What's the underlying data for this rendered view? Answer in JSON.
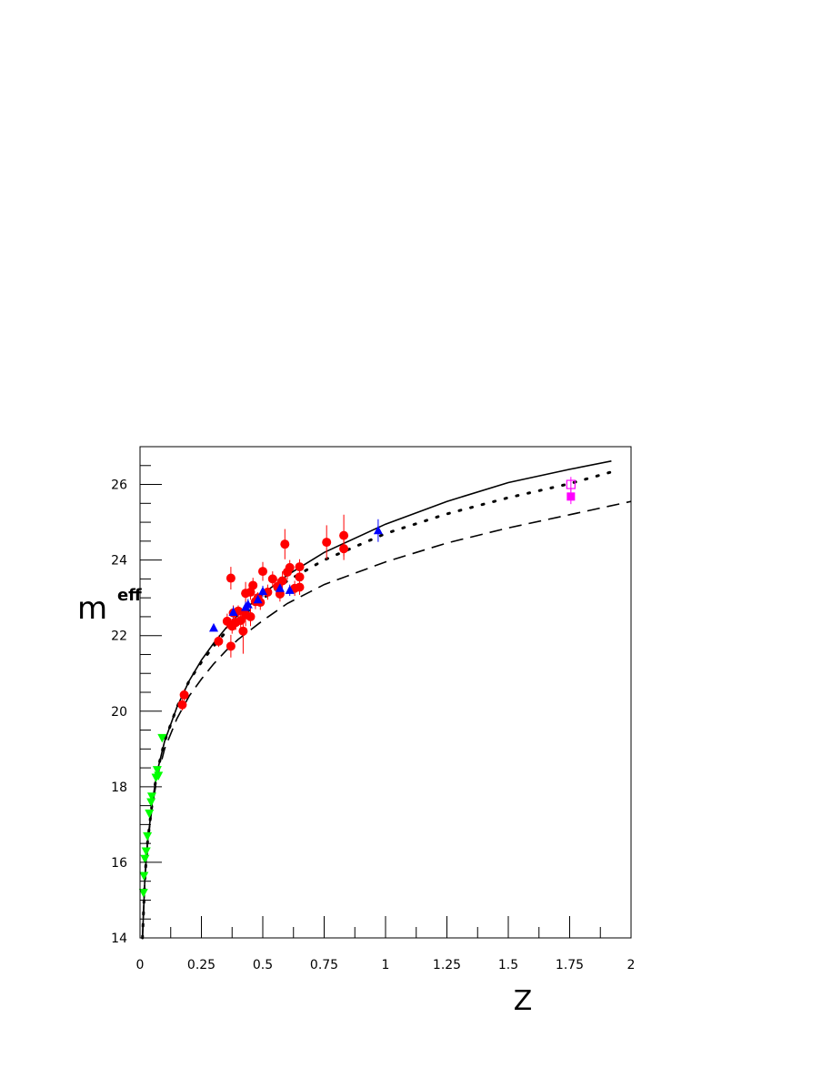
{
  "chart_data": {
    "type": "scatter",
    "title": "",
    "xlabel": "Z",
    "ylabel_main": "m",
    "ylabel_sup": "eff",
    "xlim": [
      0,
      2
    ],
    "ylim": [
      14,
      27
    ],
    "x_ticks": [
      "0",
      "0.25",
      "0.5",
      "0.75",
      "1",
      "1.25",
      "1.5",
      "1.75",
      "2"
    ],
    "x_tick_values": [
      0,
      0.25,
      0.5,
      0.75,
      1,
      1.25,
      1.5,
      1.75,
      2
    ],
    "y_ticks": [
      "14",
      "16",
      "18",
      "20",
      "22",
      "24",
      "26"
    ],
    "y_tick_values": [
      14,
      16,
      18,
      20,
      22,
      24,
      26
    ],
    "grid": false,
    "series": [
      {
        "marker": "circle",
        "color": "#ff0000",
        "points": [
          {
            "x": 0.172,
            "y": 20.17,
            "err": 0.15
          },
          {
            "x": 0.18,
            "y": 20.43,
            "err": 0.15
          },
          {
            "x": 0.32,
            "y": 21.85,
            "err": 0.15
          },
          {
            "x": 0.355,
            "y": 22.38,
            "err": 0.2
          },
          {
            "x": 0.37,
            "y": 21.72,
            "err": 0.3
          },
          {
            "x": 0.37,
            "y": 23.52,
            "err": 0.3
          },
          {
            "x": 0.375,
            "y": 22.25,
            "err": 0.2
          },
          {
            "x": 0.38,
            "y": 22.6,
            "err": 0.2
          },
          {
            "x": 0.39,
            "y": 22.35,
            "err": 0.2
          },
          {
            "x": 0.4,
            "y": 22.65,
            "err": 0.15
          },
          {
            "x": 0.41,
            "y": 22.4,
            "err": 0.25
          },
          {
            "x": 0.42,
            "y": 22.12,
            "err": 0.6
          },
          {
            "x": 0.43,
            "y": 22.55,
            "err": 0.3
          },
          {
            "x": 0.43,
            "y": 23.12,
            "err": 0.3
          },
          {
            "x": 0.45,
            "y": 22.5,
            "err": 0.25
          },
          {
            "x": 0.45,
            "y": 23.15,
            "err": 0.2
          },
          {
            "x": 0.46,
            "y": 23.33,
            "err": 0.2
          },
          {
            "x": 0.47,
            "y": 22.9,
            "err": 0.2
          },
          {
            "x": 0.48,
            "y": 23.0,
            "err": 0.15
          },
          {
            "x": 0.49,
            "y": 22.88,
            "err": 0.2
          },
          {
            "x": 0.5,
            "y": 23.7,
            "err": 0.25
          },
          {
            "x": 0.52,
            "y": 23.15,
            "err": 0.2
          },
          {
            "x": 0.54,
            "y": 23.5,
            "err": 0.2
          },
          {
            "x": 0.56,
            "y": 23.3,
            "err": 0.2
          },
          {
            "x": 0.57,
            "y": 23.1,
            "err": 0.2
          },
          {
            "x": 0.58,
            "y": 23.45,
            "err": 0.25
          },
          {
            "x": 0.59,
            "y": 24.42,
            "err": 0.4
          },
          {
            "x": 0.6,
            "y": 23.68,
            "err": 0.2
          },
          {
            "x": 0.61,
            "y": 23.8,
            "err": 0.2
          },
          {
            "x": 0.63,
            "y": 23.25,
            "err": 0.2
          },
          {
            "x": 0.65,
            "y": 23.82,
            "err": 0.2
          },
          {
            "x": 0.65,
            "y": 23.55,
            "err": 0.2
          },
          {
            "x": 0.65,
            "y": 23.28,
            "err": 0.2
          },
          {
            "x": 0.76,
            "y": 24.47,
            "err": 0.45
          },
          {
            "x": 0.83,
            "y": 24.65,
            "err": 0.55
          },
          {
            "x": 0.83,
            "y": 24.3,
            "err": 0.3
          }
        ]
      },
      {
        "marker": "triangle-up",
        "color": "#0000ff",
        "points": [
          {
            "x": 0.3,
            "y": 22.2,
            "err": 0
          },
          {
            "x": 0.38,
            "y": 22.62,
            "err": 0.15
          },
          {
            "x": 0.43,
            "y": 22.75,
            "err": 0.15
          },
          {
            "x": 0.44,
            "y": 22.82,
            "err": 0.15
          },
          {
            "x": 0.48,
            "y": 22.95,
            "err": 0.15
          },
          {
            "x": 0.5,
            "y": 23.17,
            "err": 0.15
          },
          {
            "x": 0.57,
            "y": 23.25,
            "err": 0.15
          },
          {
            "x": 0.61,
            "y": 23.2,
            "err": 0.15
          },
          {
            "x": 0.97,
            "y": 24.78,
            "err": 0.3
          }
        ]
      },
      {
        "marker": "triangle-down",
        "color": "#00ff00",
        "points": [
          {
            "x": 0.014,
            "y": 15.2,
            "err": 0
          },
          {
            "x": 0.016,
            "y": 15.65,
            "err": 0
          },
          {
            "x": 0.02,
            "y": 16.1,
            "err": 0
          },
          {
            "x": 0.025,
            "y": 16.3,
            "err": 0
          },
          {
            "x": 0.03,
            "y": 16.7,
            "err": 0
          },
          {
            "x": 0.038,
            "y": 17.3,
            "err": 0
          },
          {
            "x": 0.045,
            "y": 17.6,
            "err": 0
          },
          {
            "x": 0.048,
            "y": 17.75,
            "err": 0
          },
          {
            "x": 0.065,
            "y": 18.25,
            "err": 0
          },
          {
            "x": 0.07,
            "y": 18.45,
            "err": 0
          },
          {
            "x": 0.075,
            "y": 18.3,
            "err": 0
          },
          {
            "x": 0.09,
            "y": 19.3,
            "err": 0
          }
        ]
      },
      {
        "marker": "square-filled",
        "color": "#ff00ff",
        "points": [
          {
            "x": 1.755,
            "y": 25.68,
            "err": 0.2
          }
        ]
      },
      {
        "marker": "square-open",
        "color": "#ff00ff",
        "points": [
          {
            "x": 1.755,
            "y": 26.0,
            "err": 0.2
          }
        ]
      }
    ],
    "curves": [
      {
        "style": "solid",
        "color": "#000000",
        "points": [
          [
            0.01,
            14.0
          ],
          [
            0.02,
            15.6
          ],
          [
            0.03,
            16.5
          ],
          [
            0.05,
            17.6
          ],
          [
            0.07,
            18.4
          ],
          [
            0.1,
            19.2
          ],
          [
            0.15,
            20.1
          ],
          [
            0.2,
            20.8
          ],
          [
            0.25,
            21.35
          ],
          [
            0.3,
            21.8
          ],
          [
            0.35,
            22.2
          ],
          [
            0.4,
            22.55
          ],
          [
            0.5,
            23.1
          ],
          [
            0.6,
            23.6
          ],
          [
            0.75,
            24.2
          ],
          [
            1.0,
            24.95
          ],
          [
            1.25,
            25.55
          ],
          [
            1.5,
            26.05
          ],
          [
            1.75,
            26.4
          ],
          [
            1.92,
            26.62
          ]
        ]
      },
      {
        "style": "dotted",
        "color": "#000000",
        "points": [
          [
            0.01,
            14.0
          ],
          [
            0.02,
            15.6
          ],
          [
            0.03,
            16.5
          ],
          [
            0.05,
            17.6
          ],
          [
            0.07,
            18.4
          ],
          [
            0.1,
            19.2
          ],
          [
            0.15,
            20.1
          ],
          [
            0.2,
            20.8
          ],
          [
            0.25,
            21.3
          ],
          [
            0.3,
            21.72
          ],
          [
            0.35,
            22.1
          ],
          [
            0.4,
            22.42
          ],
          [
            0.5,
            22.98
          ],
          [
            0.6,
            23.45
          ],
          [
            0.75,
            24.0
          ],
          [
            1.0,
            24.7
          ],
          [
            1.25,
            25.22
          ],
          [
            1.5,
            25.65
          ],
          [
            1.75,
            26.02
          ],
          [
            1.92,
            26.33
          ]
        ]
      },
      {
        "style": "dashed",
        "color": "#000000",
        "points": [
          [
            0.01,
            14.0
          ],
          [
            0.02,
            15.6
          ],
          [
            0.03,
            16.45
          ],
          [
            0.05,
            17.5
          ],
          [
            0.07,
            18.25
          ],
          [
            0.1,
            19.0
          ],
          [
            0.15,
            19.8
          ],
          [
            0.2,
            20.4
          ],
          [
            0.25,
            20.85
          ],
          [
            0.3,
            21.25
          ],
          [
            0.35,
            21.6
          ],
          [
            0.4,
            21.9
          ],
          [
            0.5,
            22.4
          ],
          [
            0.6,
            22.85
          ],
          [
            0.75,
            23.35
          ],
          [
            1.0,
            23.95
          ],
          [
            1.25,
            24.45
          ],
          [
            1.5,
            24.85
          ],
          [
            1.75,
            25.2
          ],
          [
            2.0,
            25.55
          ]
        ]
      }
    ]
  }
}
